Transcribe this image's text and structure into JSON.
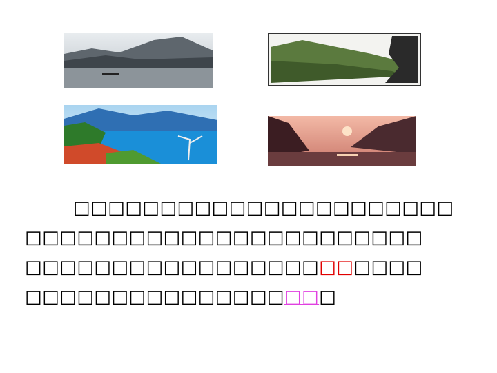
{
  "paragraph": {
    "lines": [
      [
        {
          "text": "□□□□□□□□□□□□□□□□□□□□□□"
        }
      ],
      [
        {
          "text": "□□□□□□□□□□□□□□□□□□□□□□□"
        }
      ],
      [
        {
          "text": "□□□□□□□□□□□□□□□□□"
        },
        {
          "text": "□□",
          "style": "red"
        },
        {
          "text": "□□□□"
        }
      ],
      [
        {
          "text": "□□□□□□□□□□□□□□□"
        },
        {
          "text": "□□",
          "style": "pink-underline"
        },
        {
          "text": "□"
        }
      ]
    ]
  }
}
